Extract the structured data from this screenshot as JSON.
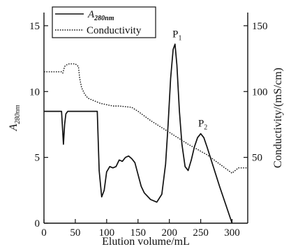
{
  "chart_data": {
    "type": "line",
    "xlabel": "Elution volume/mL",
    "ylabel_left": {
      "main": "A",
      "sub": "280nm"
    },
    "ylabel_right": "Conductivity/(mS/cm)",
    "xlim": [
      0,
      325
    ],
    "ylim_left": [
      0,
      16
    ],
    "ylim_right": [
      0,
      160
    ],
    "x_ticks": [
      0,
      50,
      100,
      150,
      200,
      250,
      300
    ],
    "y_ticks_left": [
      0,
      5,
      10,
      15
    ],
    "y_ticks_right": [
      50,
      100,
      150
    ],
    "grid": false,
    "legend_position": "top-left",
    "series": [
      {
        "name": {
          "main": "A",
          "sub": "280nm"
        },
        "axis": "left",
        "style": "solid",
        "color": "#111111",
        "x": [
          0,
          28,
          31,
          33,
          35,
          38,
          85,
          88,
          92,
          96,
          100,
          105,
          110,
          115,
          120,
          125,
          130,
          135,
          140,
          145,
          150,
          155,
          160,
          170,
          180,
          188,
          194,
          198,
          202,
          206,
          209,
          212,
          216,
          220,
          225,
          230,
          235,
          240,
          245,
          250,
          255,
          260,
          270,
          280,
          290,
          300
        ],
        "y": [
          8.5,
          8.5,
          6.0,
          7.5,
          8.3,
          8.5,
          8.5,
          4.0,
          2.0,
          2.5,
          3.9,
          4.3,
          4.2,
          4.3,
          4.8,
          4.7,
          5.0,
          5.1,
          4.9,
          4.6,
          3.7,
          2.8,
          2.3,
          1.8,
          1.6,
          2.2,
          4.5,
          7.5,
          11.0,
          13.2,
          13.6,
          12.0,
          8.5,
          6.0,
          4.3,
          4.0,
          4.8,
          5.8,
          6.5,
          6.8,
          6.5,
          5.8,
          4.3,
          2.8,
          1.4,
          0.0
        ]
      },
      {
        "name": "Conductivity",
        "axis": "right",
        "style": "dotted",
        "color": "#111111",
        "x": [
          0,
          10,
          20,
          28,
          30,
          33,
          35,
          40,
          50,
          55,
          57,
          60,
          65,
          70,
          80,
          90,
          100,
          110,
          120,
          140,
          150,
          170,
          200,
          230,
          260,
          300,
          310,
          315,
          320,
          325
        ],
        "y": [
          115,
          115,
          115,
          115,
          114,
          119,
          120,
          121,
          121,
          119,
          110,
          103,
          98,
          95,
          93,
          91,
          90,
          89,
          89,
          88,
          85,
          78,
          69,
          60,
          52,
          38,
          42,
          42,
          42,
          42
        ]
      }
    ],
    "annotations": [
      {
        "text": "P",
        "sub": "1",
        "x": 209,
        "y": 13.6
      },
      {
        "text": "P",
        "sub": "2",
        "x": 250,
        "y": 6.8
      }
    ]
  }
}
